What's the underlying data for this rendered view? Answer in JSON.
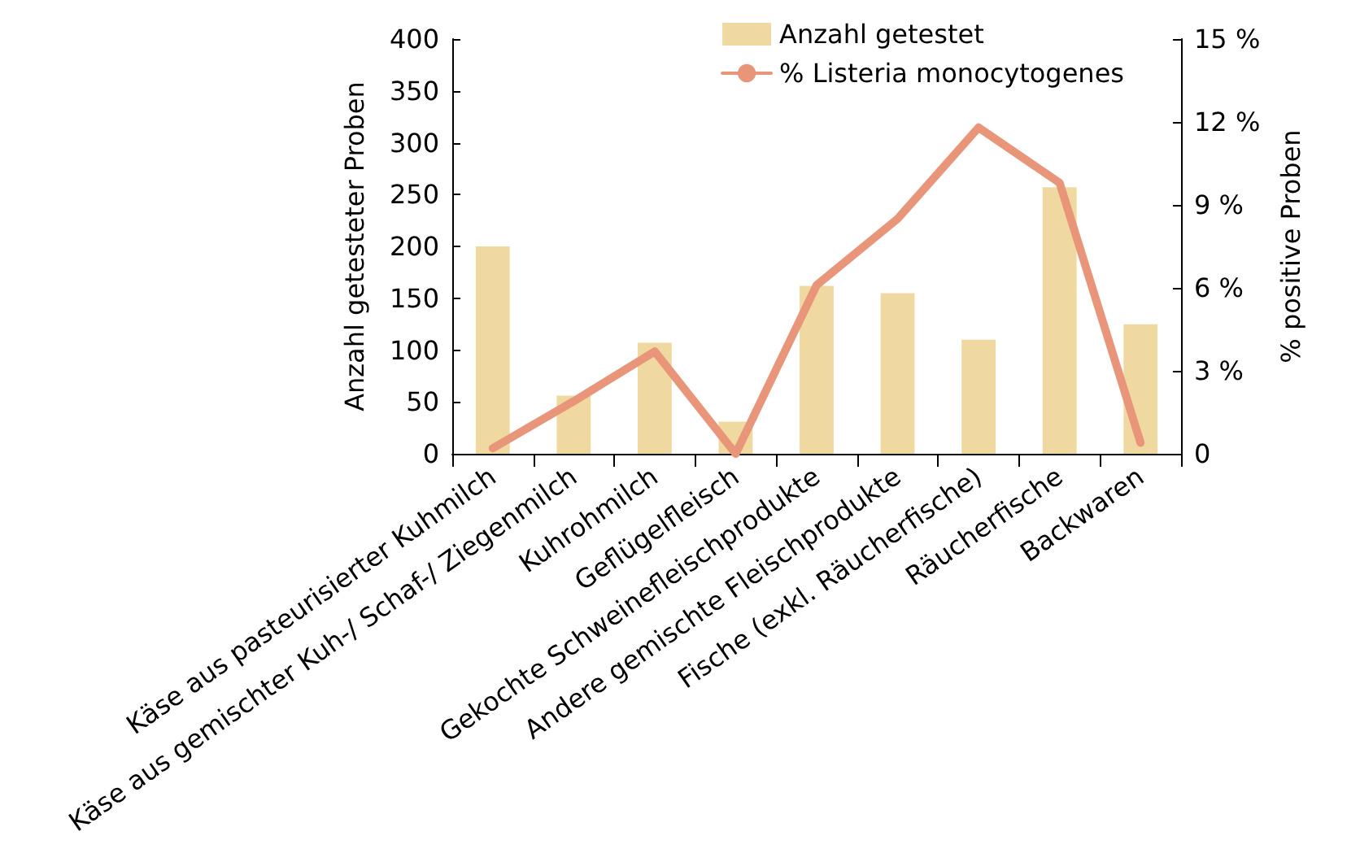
{
  "chart_data": {
    "type": "bar",
    "categories": [
      "Käse aus pasteurisierter Kuhmilch",
      "Käse aus gemischter Kuh-/ Schaf-/ Ziegenmilch",
      "Kuhrohmilch",
      "Geflügelfleisch",
      "Gekochte Schweinefleischprodukte",
      "Andere gemischte Fleischprodukte",
      "Fische (exkl. Räucherfische)",
      "Räucherfische",
      "Backwaren"
    ],
    "series": [
      {
        "name": "Anzahl getestet",
        "color": "#f0d9a0",
        "values": [
          200,
          56,
          107,
          31,
          162,
          155,
          110,
          257,
          125
        ]
      },
      {
        "name": "% Listeria monocytogenes",
        "type": "line",
        "axis": "y2",
        "color": "#e8957a",
        "values": [
          0.2,
          1.9,
          3.7,
          0,
          6.1,
          8.5,
          11.8,
          9.8,
          0.4
        ]
      }
    ],
    "ylabel": "Anzahl getesteter Proben",
    "y2label": "% positive Proben",
    "ylim": [
      0,
      400
    ],
    "yticks": [
      0,
      50,
      100,
      150,
      200,
      250,
      300,
      350,
      400
    ],
    "y2lim": [
      0,
      15
    ],
    "y2ticks": [
      {
        "value": 0,
        "label": "0"
      },
      {
        "value": 3,
        "label": "3 %"
      },
      {
        "value": 6,
        "label": "6 %"
      },
      {
        "value": 9,
        "label": "9 %"
      },
      {
        "value": 12,
        "label": "12 %"
      },
      {
        "value": 15,
        "label": "15 %"
      }
    ],
    "legend": "top right",
    "grid": false,
    "marker": "none",
    "line_style": "solid"
  }
}
